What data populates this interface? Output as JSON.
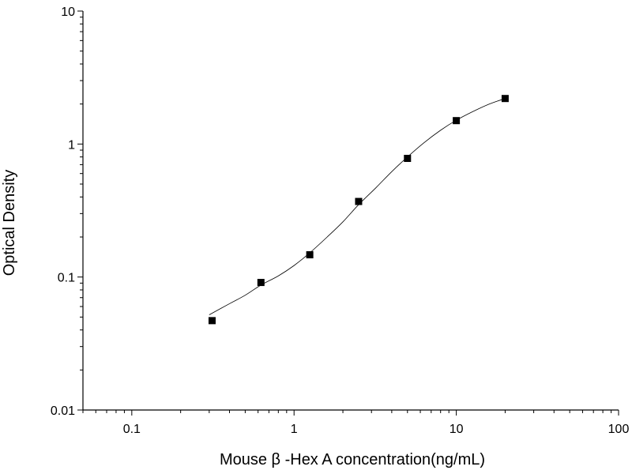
{
  "chart_data": {
    "type": "scatter",
    "title": "",
    "xlabel": "Mouse β -Hex A concentration(ng/mL)",
    "ylabel": "Optical Density",
    "xscale": "log",
    "yscale": "log",
    "xlim": [
      0.05,
      100
    ],
    "ylim": [
      0.01,
      10
    ],
    "xticks": [
      0.1,
      1,
      10,
      100
    ],
    "xtick_labels": [
      "0.1",
      "1",
      "10",
      "100"
    ],
    "yticks": [
      0.01,
      0.1,
      1,
      10
    ],
    "ytick_labels": [
      "0.01",
      "0.1",
      "1",
      "10"
    ],
    "grid": false,
    "legend": "none",
    "marker": "square",
    "colors": {
      "points": "#000000",
      "curve": "#000000",
      "axes": "#000000"
    },
    "series": [
      {
        "x": [
          0.3125,
          0.625,
          1.25,
          2.5,
          5,
          10,
          20
        ],
        "y": [
          0.047,
          0.091,
          0.147,
          0.37,
          0.78,
          1.5,
          2.2
        ]
      }
    ],
    "fit_curve": {
      "x": [
        0.3,
        0.4,
        0.5,
        0.625,
        0.8,
        1.0,
        1.25,
        1.6,
        2.0,
        2.5,
        3.2,
        4.0,
        5.0,
        6.3,
        8.0,
        10,
        12.6,
        16,
        20
      ],
      "y": [
        0.052,
        0.063,
        0.073,
        0.087,
        0.102,
        0.122,
        0.152,
        0.2,
        0.26,
        0.35,
        0.47,
        0.62,
        0.8,
        1.02,
        1.27,
        1.51,
        1.75,
        2.0,
        2.2
      ]
    }
  }
}
